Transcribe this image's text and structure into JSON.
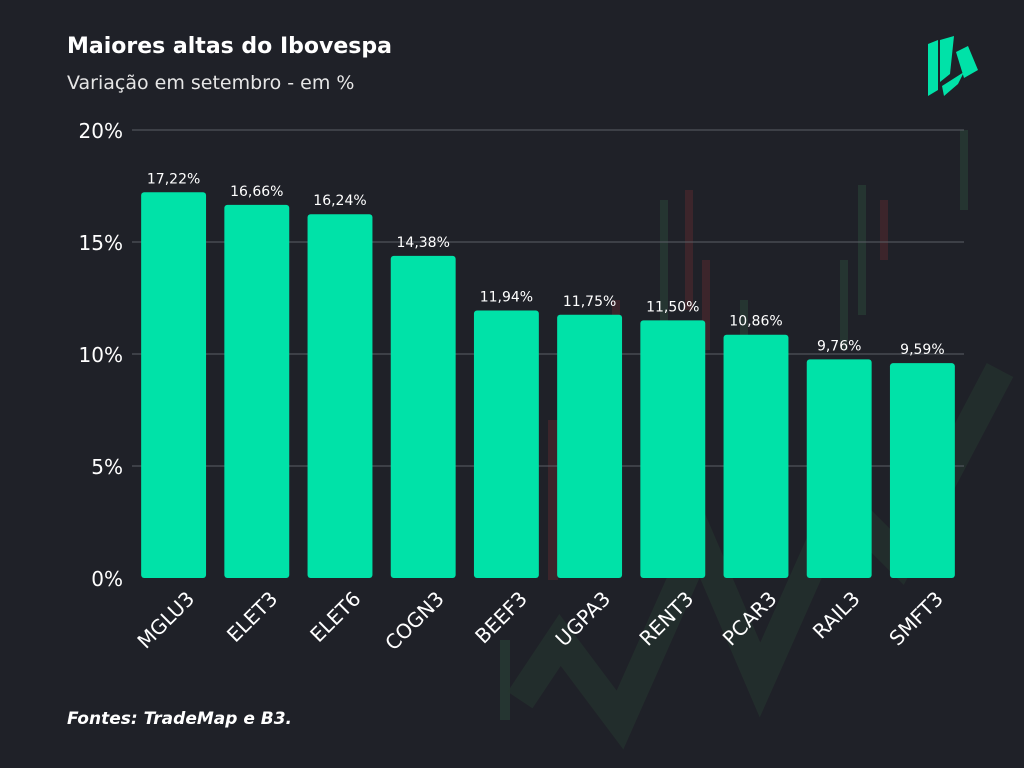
{
  "title": "Maiores altas do Ibovespa",
  "subtitle": "Variação em setembro - em %",
  "source": "Fontes: TradeMap e B3.",
  "colors": {
    "background": "#1f2128",
    "bar": "#00e2a8",
    "text": "#ffffff",
    "grid": "#5b5e66"
  },
  "logo_icon": "green-books-logo-icon",
  "chart_data": {
    "type": "bar",
    "title": "Maiores altas do Ibovespa",
    "subtitle": "Variação em setembro - em %",
    "categories": [
      "MGLU3",
      "ELET3",
      "ELET6",
      "COGN3",
      "BEEF3",
      "UGPA3",
      "RENT3",
      "PCAR3",
      "RAIL3",
      "SMFT3"
    ],
    "values": [
      17.22,
      16.66,
      16.24,
      14.38,
      11.94,
      11.75,
      11.5,
      10.86,
      9.76,
      9.59
    ],
    "value_labels": [
      "17,22%",
      "16,66%",
      "16,24%",
      "14,38%",
      "11,94%",
      "11,75%",
      "11,50%",
      "10,86%",
      "9,76%",
      "9,59%"
    ],
    "yticks": [
      0,
      5,
      10,
      15,
      20
    ],
    "ytick_labels": [
      "0%",
      "5%",
      "10%",
      "15%",
      "20%"
    ],
    "ylim": [
      0,
      20
    ],
    "grid": true,
    "legend": "none"
  }
}
